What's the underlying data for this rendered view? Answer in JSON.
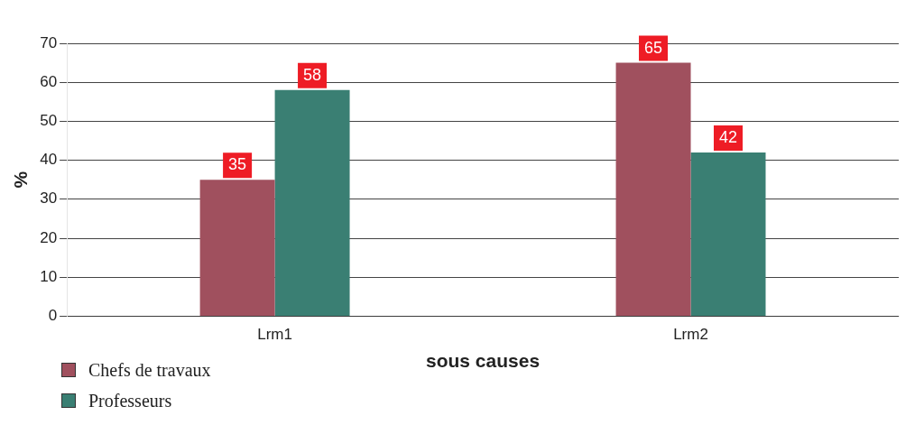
{
  "chart_data": {
    "type": "bar",
    "xlabel": "sous causes",
    "ylabel": "%",
    "categories": [
      "Lrm1",
      "Lrm2"
    ],
    "series": [
      {
        "name": "Chefs de travaux",
        "color": "#a0505e",
        "values": [
          35,
          65
        ]
      },
      {
        "name": "Professeurs",
        "color": "#3a7f73",
        "values": [
          58,
          42
        ]
      }
    ],
    "ylim": [
      0,
      70
    ],
    "yticks": [
      0,
      10,
      20,
      30,
      40,
      50,
      60,
      70
    ],
    "grid": "y",
    "legend": "bottom left",
    "data_labels": true
  }
}
